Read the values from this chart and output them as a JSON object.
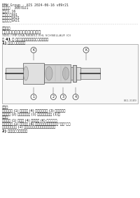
{
  "header_line1": "BMW Group - AIS 2024-06-16 v09r21",
  "header_line2": "编辑器：  3007D21",
  "header_line3": "型号：1.16",
  "header_line4": "欧式代码：E81",
  "header_line5": "型号代码：UA21",
  "header_line6": "底盘类型：UA21",
  "section_label": "维修规程",
  "main_title": "带有快速接头的液压管路注意事项",
  "subtitle_ref": "34XL / PIP-USA-980852-XHL SCHNELLAUF (O)",
  "fig_label": "图 41 ： 带有快速接头的液压管路注意事项",
  "subsection1": "1) 图示记的快速接头",
  "caption_label1": "图解：",
  "caption_text1": "将快速接头 (1) 插到管道 (4) 插接到下管路 (3) 上的位置。",
  "caption_text2": "将管件卡 (2) 压入快速接头 (1) 并锁下快速接头 (1)。",
  "note_label": "提示：",
  "note_text1": "快速接头 (1) 和管道 (4) 上的标记 (K) 必须对齐。",
  "note_text2": "将快速接头 (1) 插接管道 (4) 上，直至听到一声清晰的“咊哒”声。",
  "note_text3": "为检查快速接头 (1) 已被正确锁定，用其用力拉管道。",
  "subsection2": "2) 带图字幕的快速接头",
  "bg_color": "#ffffff",
  "fig_num": "E61-3189"
}
